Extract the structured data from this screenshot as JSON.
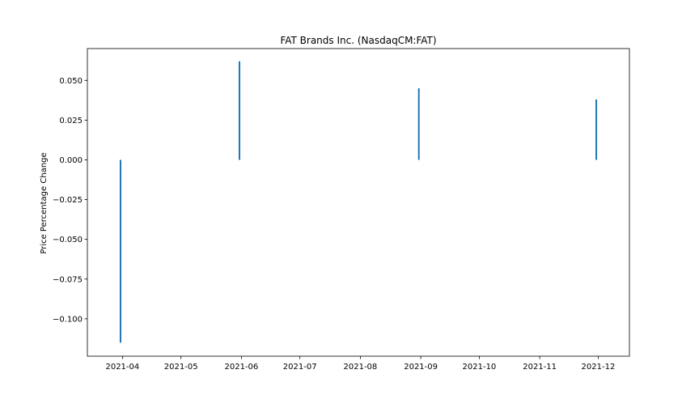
{
  "chart_data": {
    "type": "bar",
    "title": "FAT Brands Inc. (NasdaqCM:FAT)",
    "xlabel": "",
    "ylabel": "Price Percentage Change",
    "x_tick_labels": [
      "2021-04",
      "2021-05",
      "2021-06",
      "2021-07",
      "2021-08",
      "2021-09",
      "2021-10",
      "2021-11",
      "2021-12"
    ],
    "y_ticks": [
      0.05,
      0.025,
      0.0,
      -0.025,
      -0.05,
      -0.075,
      -0.1
    ],
    "y_tick_labels": [
      "0.050",
      "0.025",
      "0.000",
      "−0.025",
      "−0.050",
      "−0.075",
      "−0.100"
    ],
    "xlim": [
      "2021-03-14",
      "2021-12-17"
    ],
    "ylim": [
      -0.1235,
      0.07
    ],
    "x": [
      "2021-03-31",
      "2021-05-31",
      "2021-08-31",
      "2021-11-30"
    ],
    "values": [
      -0.115,
      0.062,
      0.045,
      0.038
    ],
    "colors": {
      "bar": "#1f77b4",
      "axis": "#000000",
      "background": "#ffffff"
    },
    "grid": false
  }
}
